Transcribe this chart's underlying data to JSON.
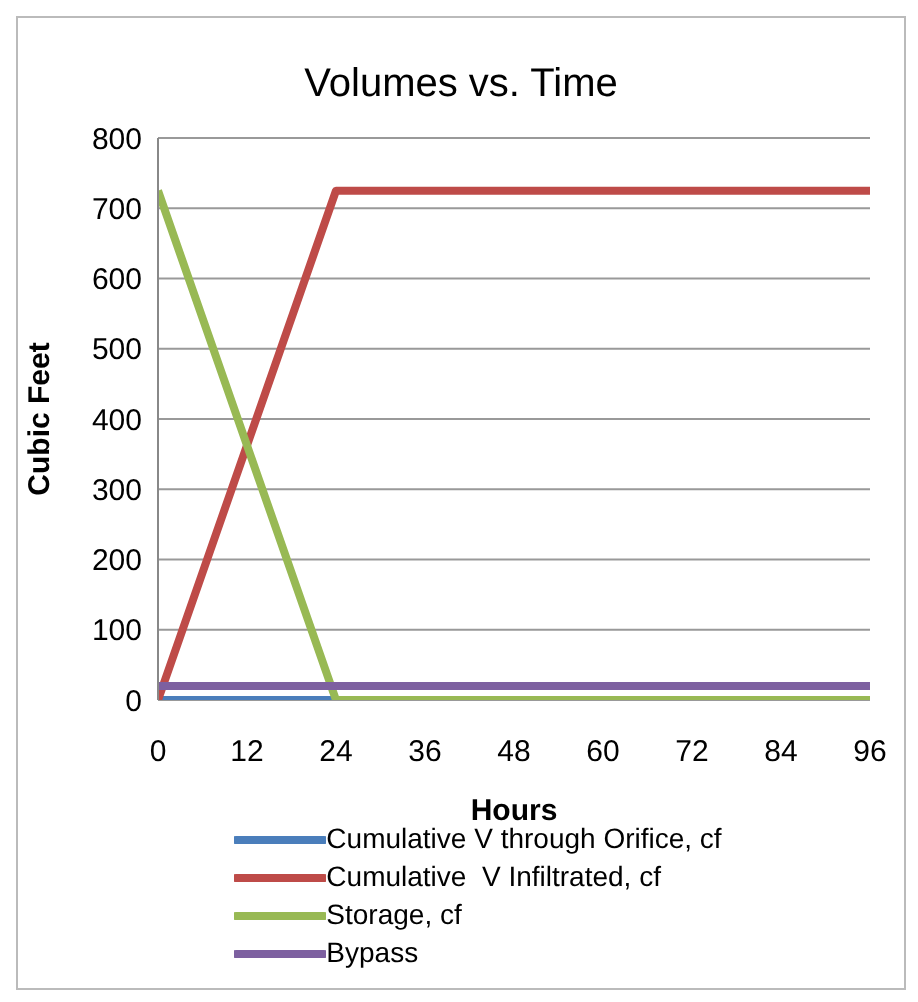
{
  "chart_data": {
    "type": "line",
    "title": "Volumes vs. Time",
    "xlabel": "Hours",
    "ylabel": "Cubic Feet",
    "x": [
      0,
      24,
      96
    ],
    "series": [
      {
        "name": "Cumulative V through Orifice, cf",
        "color": "#4a7ebb",
        "values": [
          0,
          0,
          null
        ]
      },
      {
        "name": "Cumulative  V Infiltrated, cf",
        "color": "#be4b48",
        "values": [
          0,
          725,
          725
        ]
      },
      {
        "name": "Storage, cf",
        "color": "#98b954",
        "values": [
          725,
          0,
          0
        ]
      },
      {
        "name": "Bypass",
        "color": "#7d60a0",
        "values": [
          20,
          20,
          20
        ]
      }
    ],
    "xlim": [
      0,
      96
    ],
    "xticks": [
      0,
      12,
      24,
      36,
      48,
      60,
      72,
      84,
      96
    ],
    "ylim": [
      0,
      800
    ],
    "yticks": [
      0,
      100,
      200,
      300,
      400,
      500,
      600,
      700,
      800
    ],
    "grid": "y",
    "legend": "bottom",
    "marker": "none",
    "line_style": "solid"
  }
}
